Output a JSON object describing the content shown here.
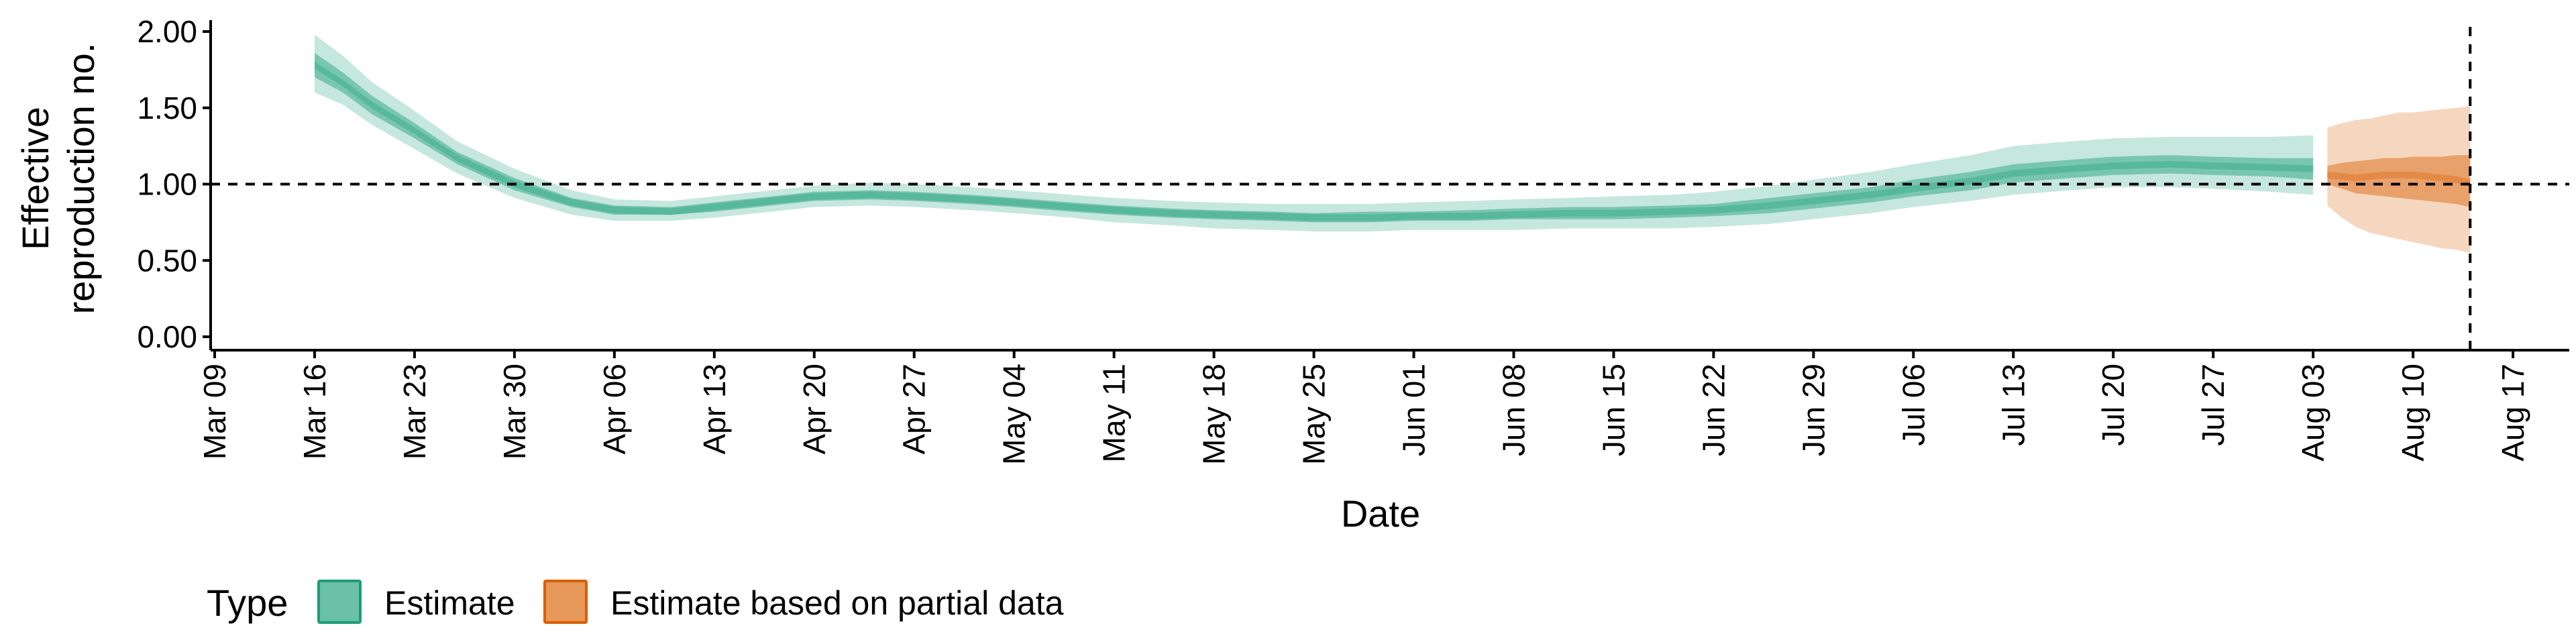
{
  "chart_data": {
    "type": "area",
    "xlabel": "Date",
    "ylabel_lines": [
      "Effective",
      "reproduction no."
    ],
    "x_ticks": [
      "Mar 09",
      "Mar 16",
      "Mar 23",
      "Mar 30",
      "Apr 06",
      "Apr 13",
      "Apr 20",
      "Apr 27",
      "May 04",
      "May 11",
      "May 18",
      "May 25",
      "Jun 01",
      "Jun 08",
      "Jun 15",
      "Jun 22",
      "Jun 29",
      "Jul 06",
      "Jul 13",
      "Jul 20",
      "Jul 27",
      "Aug 03",
      "Aug 10",
      "Aug 17"
    ],
    "y_ticks": [
      "0.00",
      "0.50",
      "1.00",
      "1.50",
      "2.00"
    ],
    "ylim": [
      0,
      2.08
    ],
    "xlim_days_from_first_tick": [
      -0.4,
      70.3
    ],
    "reference_hline": 1.0,
    "reference_vline_date": "Aug 14",
    "legend": {
      "title": "Type",
      "position": "bottom",
      "entries": [
        {
          "label": "Estimate",
          "color": "#1b9e77"
        },
        {
          "label": "Estimate based on partial data",
          "color": "#d95f02"
        }
      ]
    },
    "series": [
      {
        "name": "Estimate",
        "color": "#1b9e77",
        "x_dates": [
          "Mar 16",
          "Mar 18",
          "Mar 20",
          "Mar 23",
          "Mar 26",
          "Mar 30",
          "Apr 03",
          "Apr 06",
          "Apr 10",
          "Apr 13",
          "Apr 17",
          "Apr 20",
          "Apr 24",
          "Apr 27",
          "May 01",
          "May 04",
          "May 08",
          "May 11",
          "May 15",
          "May 18",
          "May 22",
          "May 25",
          "May 29",
          "Jun 01",
          "Jun 05",
          "Jun 08",
          "Jun 12",
          "Jun 15",
          "Jun 19",
          "Jun 22",
          "Jun 26",
          "Jun 29",
          "Jul 03",
          "Jul 06",
          "Jul 10",
          "Jul 13",
          "Jul 17",
          "Jul 20",
          "Jul 24",
          "Jul 27",
          "Jul 31",
          "Aug 03"
        ],
        "median": [
          1.78,
          1.66,
          1.52,
          1.35,
          1.17,
          1.0,
          0.88,
          0.83,
          0.82,
          0.85,
          0.89,
          0.92,
          0.93,
          0.92,
          0.9,
          0.88,
          0.85,
          0.83,
          0.81,
          0.8,
          0.79,
          0.78,
          0.78,
          0.79,
          0.79,
          0.8,
          0.81,
          0.81,
          0.82,
          0.83,
          0.86,
          0.89,
          0.93,
          0.97,
          1.02,
          1.07,
          1.1,
          1.12,
          1.13,
          1.12,
          1.11,
          1.1
        ],
        "lower_50": [
          1.7,
          1.6,
          1.46,
          1.3,
          1.13,
          0.96,
          0.85,
          0.8,
          0.8,
          0.82,
          0.86,
          0.89,
          0.9,
          0.89,
          0.87,
          0.85,
          0.82,
          0.8,
          0.78,
          0.77,
          0.76,
          0.75,
          0.75,
          0.76,
          0.76,
          0.77,
          0.77,
          0.77,
          0.78,
          0.79,
          0.81,
          0.84,
          0.88,
          0.92,
          0.96,
          1.01,
          1.04,
          1.06,
          1.07,
          1.06,
          1.05,
          1.03
        ],
        "upper_50": [
          1.86,
          1.73,
          1.58,
          1.4,
          1.21,
          1.04,
          0.91,
          0.86,
          0.85,
          0.88,
          0.92,
          0.95,
          0.96,
          0.95,
          0.93,
          0.91,
          0.88,
          0.86,
          0.84,
          0.83,
          0.82,
          0.81,
          0.82,
          0.82,
          0.83,
          0.84,
          0.85,
          0.85,
          0.86,
          0.87,
          0.91,
          0.94,
          0.98,
          1.03,
          1.08,
          1.13,
          1.16,
          1.18,
          1.19,
          1.18,
          1.17,
          1.17
        ],
        "lower_90": [
          1.6,
          1.52,
          1.39,
          1.23,
          1.07,
          0.91,
          0.8,
          0.76,
          0.76,
          0.78,
          0.82,
          0.85,
          0.86,
          0.85,
          0.83,
          0.81,
          0.78,
          0.75,
          0.73,
          0.71,
          0.7,
          0.69,
          0.69,
          0.7,
          0.7,
          0.7,
          0.71,
          0.71,
          0.71,
          0.72,
          0.74,
          0.77,
          0.81,
          0.85,
          0.89,
          0.93,
          0.96,
          0.98,
          0.98,
          0.97,
          0.95,
          0.93
        ],
        "upper_90": [
          1.98,
          1.84,
          1.67,
          1.48,
          1.28,
          1.1,
          0.96,
          0.9,
          0.89,
          0.92,
          0.96,
          0.99,
          1.01,
          1.0,
          0.98,
          0.96,
          0.93,
          0.91,
          0.89,
          0.88,
          0.87,
          0.87,
          0.87,
          0.88,
          0.89,
          0.9,
          0.91,
          0.92,
          0.93,
          0.95,
          0.99,
          1.03,
          1.08,
          1.13,
          1.19,
          1.25,
          1.28,
          1.3,
          1.31,
          1.31,
          1.31,
          1.32
        ]
      },
      {
        "name": "Estimate based on partial data",
        "color": "#d95f02",
        "x_dates": [
          "Aug 04",
          "Aug 05",
          "Aug 06",
          "Aug 07",
          "Aug 08",
          "Aug 09",
          "Aug 10",
          "Aug 11",
          "Aug 12",
          "Aug 13",
          "Aug 14"
        ],
        "median": [
          1.06,
          1.05,
          1.04,
          1.05,
          1.06,
          1.06,
          1.06,
          1.05,
          1.04,
          1.03,
          1.01
        ],
        "lower_50": [
          1.0,
          0.97,
          0.94,
          0.93,
          0.92,
          0.91,
          0.9,
          0.89,
          0.88,
          0.87,
          0.85
        ],
        "upper_50": [
          1.12,
          1.14,
          1.15,
          1.16,
          1.17,
          1.17,
          1.18,
          1.18,
          1.18,
          1.19,
          1.19
        ],
        "lower_90": [
          0.86,
          0.78,
          0.72,
          0.68,
          0.66,
          0.64,
          0.62,
          0.6,
          0.58,
          0.57,
          0.55
        ],
        "upper_90": [
          1.37,
          1.4,
          1.42,
          1.43,
          1.45,
          1.47,
          1.47,
          1.48,
          1.49,
          1.5,
          1.51
        ]
      }
    ]
  }
}
